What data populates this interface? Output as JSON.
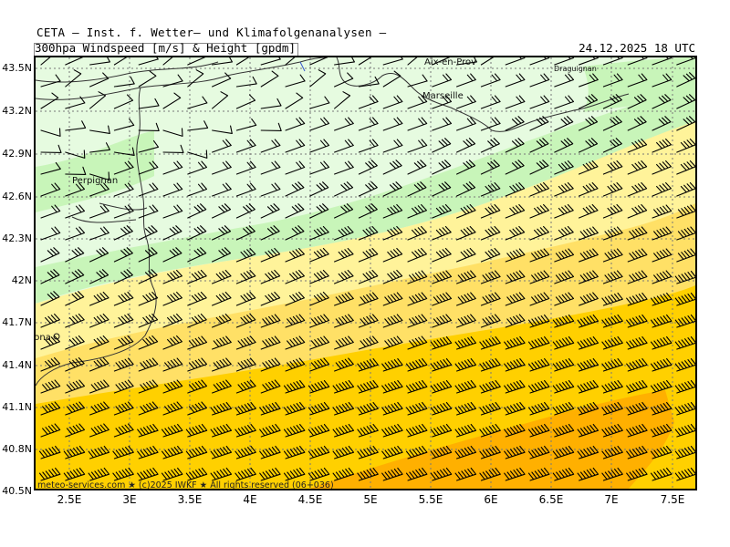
{
  "header": {
    "title": "CETA – Inst. f. Wetter– und Klimafolgenanalysen –",
    "subtitle": "300hpa Windspeed [m/s] & Height [gpdm]",
    "datetime": "24.12.2025 18 UTC"
  },
  "map": {
    "lat_labels": [
      "43.5N",
      "43.2N",
      "42.9N",
      "42.6N",
      "42.3N",
      "42N",
      "41.7N",
      "41.4N",
      "41.1N",
      "40.8N",
      "40.5N"
    ],
    "lon_labels": [
      "2.5E",
      "3E",
      "3.5E",
      "4E",
      "4.5E",
      "5E",
      "5.5E",
      "6E",
      "6.5E",
      "7E",
      "7.5E"
    ],
    "cities": [
      "Aix-en-Prov",
      "Draguignan",
      "Marseille",
      "Perpignan",
      "Barcelona"
    ],
    "credit": "meteo-services.com ★ (c)2025 IWKF ★ All rights reserved (06+036)",
    "colors": {
      "light_green": "#e6fbe0",
      "green": "#c8f5b9",
      "light_yellow": "#fff39a",
      "yellow": "#ffe066",
      "gold": "#ffd000",
      "orange": "#ffb000"
    }
  }
}
